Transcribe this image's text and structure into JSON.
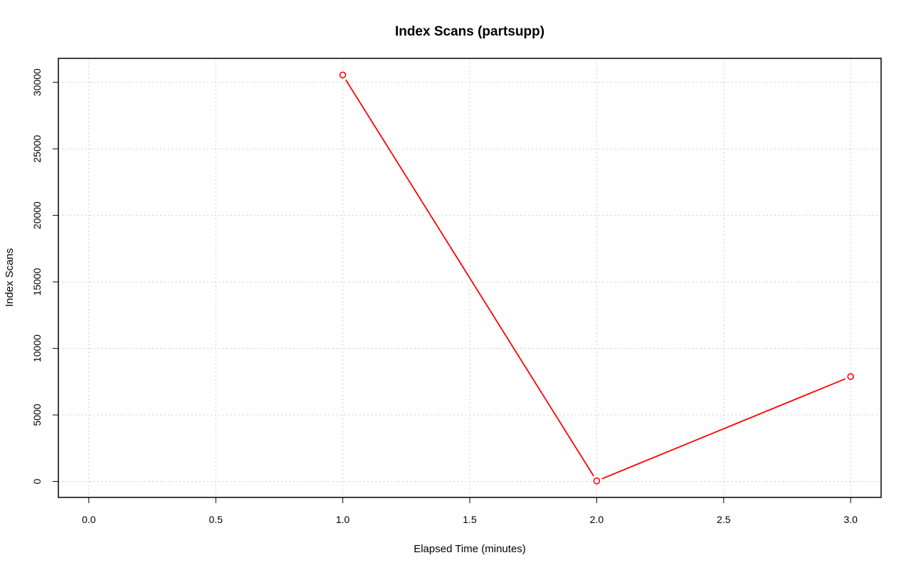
{
  "chart_data": {
    "type": "line",
    "title": "Index Scans (partsupp)",
    "xlabel": "Elapsed Time (minutes)",
    "ylabel": "Index Scans",
    "x_ticks": [
      "0.0",
      "0.5",
      "1.0",
      "1.5",
      "2.0",
      "2.5",
      "3.0"
    ],
    "y_ticks": [
      "0",
      "5000",
      "10000",
      "15000",
      "20000",
      "25000",
      "30000"
    ],
    "xlim": [
      -0.12,
      3.12
    ],
    "ylim": [
      -1200,
      31800
    ],
    "grid": true,
    "series": [
      {
        "color": "#ff0000",
        "marker": "open-circle",
        "x": [
          1.0,
          2.0,
          3.0
        ],
        "y": [
          30550,
          40,
          7880
        ]
      }
    ]
  }
}
